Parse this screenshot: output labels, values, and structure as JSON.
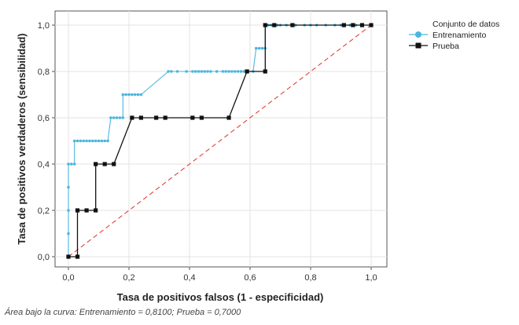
{
  "chart_data": {
    "type": "line",
    "title": "",
    "xlabel": "Tasa de positivos falsos (1 - especificidad)",
    "ylabel": "Tasa de positivos verdaderos (sensibilidad)",
    "xlim": [
      0,
      1
    ],
    "ylim": [
      0,
      1
    ],
    "x_ticks": [
      0,
      0.2,
      0.4,
      0.6,
      0.8,
      1.0
    ],
    "y_ticks": [
      0,
      0.2,
      0.4,
      0.6,
      0.8,
      1.0
    ],
    "x_tick_labels": [
      "0,0",
      "0,2",
      "0,4",
      "0,6",
      "0,8",
      "1,0"
    ],
    "y_tick_labels": [
      "0,0",
      "0,2",
      "0,4",
      "0,6",
      "0,8",
      "1,0"
    ],
    "grid": true,
    "legend": {
      "title": "Conjunto de datos",
      "placement": "top-right"
    },
    "series": [
      {
        "name": "Entrenamiento",
        "color": "#4cb6de",
        "marker": "circle",
        "points": [
          [
            0,
            0
          ],
          [
            0,
            0.1
          ],
          [
            0,
            0.2
          ],
          [
            0,
            0.3
          ],
          [
            0,
            0.4
          ],
          [
            0.01,
            0.4
          ],
          [
            0.02,
            0.4
          ],
          [
            0.02,
            0.5
          ],
          [
            0.03,
            0.5
          ],
          [
            0.04,
            0.5
          ],
          [
            0.05,
            0.5
          ],
          [
            0.06,
            0.5
          ],
          [
            0.07,
            0.5
          ],
          [
            0.08,
            0.5
          ],
          [
            0.09,
            0.5
          ],
          [
            0.1,
            0.5
          ],
          [
            0.11,
            0.5
          ],
          [
            0.12,
            0.5
          ],
          [
            0.13,
            0.5
          ],
          [
            0.14,
            0.6
          ],
          [
            0.15,
            0.6
          ],
          [
            0.16,
            0.6
          ],
          [
            0.17,
            0.6
          ],
          [
            0.18,
            0.6
          ],
          [
            0.18,
            0.7
          ],
          [
            0.19,
            0.7
          ],
          [
            0.2,
            0.7
          ],
          [
            0.21,
            0.7
          ],
          [
            0.22,
            0.7
          ],
          [
            0.23,
            0.7
          ],
          [
            0.24,
            0.7
          ],
          [
            0.33,
            0.8
          ],
          [
            0.34,
            0.8
          ],
          [
            0.36,
            0.8
          ],
          [
            0.39,
            0.8
          ],
          [
            0.41,
            0.8
          ],
          [
            0.42,
            0.8
          ],
          [
            0.43,
            0.8
          ],
          [
            0.44,
            0.8
          ],
          [
            0.45,
            0.8
          ],
          [
            0.46,
            0.8
          ],
          [
            0.47,
            0.8
          ],
          [
            0.49,
            0.8
          ],
          [
            0.51,
            0.8
          ],
          [
            0.52,
            0.8
          ],
          [
            0.53,
            0.8
          ],
          [
            0.54,
            0.8
          ],
          [
            0.55,
            0.8
          ],
          [
            0.56,
            0.8
          ],
          [
            0.57,
            0.8
          ],
          [
            0.58,
            0.8
          ],
          [
            0.59,
            0.8
          ],
          [
            0.61,
            0.8
          ],
          [
            0.62,
            0.9
          ],
          [
            0.63,
            0.9
          ],
          [
            0.64,
            0.9
          ],
          [
            0.65,
            0.9
          ],
          [
            0.65,
            1.0
          ],
          [
            0.66,
            1.0
          ],
          [
            0.67,
            1.0
          ],
          [
            0.68,
            1.0
          ],
          [
            0.69,
            1.0
          ],
          [
            0.7,
            1.0
          ],
          [
            0.72,
            1.0
          ],
          [
            0.75,
            1.0
          ],
          [
            0.78,
            1.0
          ],
          [
            0.8,
            1.0
          ],
          [
            0.82,
            1.0
          ],
          [
            0.85,
            1.0
          ],
          [
            0.88,
            1.0
          ],
          [
            0.9,
            1.0
          ],
          [
            0.93,
            1.0
          ],
          [
            0.95,
            1.0
          ],
          [
            0.97,
            1.0
          ],
          [
            1.0,
            1.0
          ]
        ]
      },
      {
        "name": "Prueba",
        "color": "#111111",
        "marker": "square",
        "points": [
          [
            0,
            0
          ],
          [
            0.03,
            0
          ],
          [
            0.03,
            0.2
          ],
          [
            0.06,
            0.2
          ],
          [
            0.09,
            0.2
          ],
          [
            0.09,
            0.4
          ],
          [
            0.12,
            0.4
          ],
          [
            0.15,
            0.4
          ],
          [
            0.21,
            0.6
          ],
          [
            0.24,
            0.6
          ],
          [
            0.29,
            0.6
          ],
          [
            0.32,
            0.6
          ],
          [
            0.41,
            0.6
          ],
          [
            0.44,
            0.6
          ],
          [
            0.53,
            0.6
          ],
          [
            0.59,
            0.8
          ],
          [
            0.65,
            0.8
          ],
          [
            0.65,
            1.0
          ],
          [
            0.68,
            1.0
          ],
          [
            0.74,
            1.0
          ],
          [
            0.91,
            1.0
          ],
          [
            0.94,
            1.0
          ],
          [
            0.97,
            1.0
          ],
          [
            1.0,
            1.0
          ]
        ]
      },
      {
        "name": "",
        "color": "#e0413a",
        "style": "dashed",
        "points": [
          [
            0,
            0
          ],
          [
            1,
            1
          ]
        ]
      }
    ]
  },
  "footnote": "Área bajo la curva: Entrenamiento = 0,8100; Prueba = 0,7000"
}
